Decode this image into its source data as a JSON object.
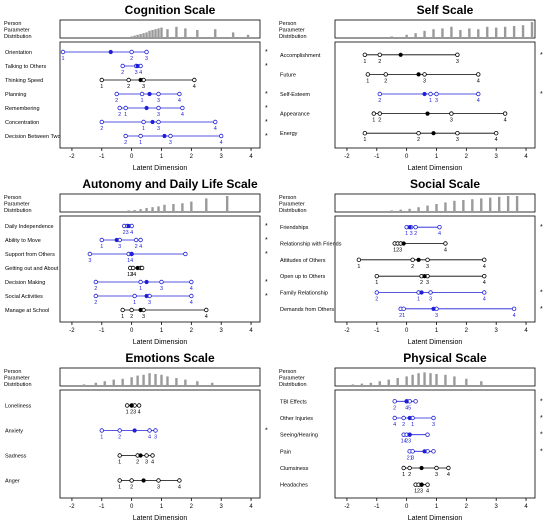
{
  "figure": {
    "distribution_label_lines": [
      "Person",
      "Parameter",
      "Distribution"
    ],
    "xlabel": "Latent Dimension",
    "xticks": [
      -2,
      -1,
      0,
      1,
      2,
      3,
      4
    ],
    "xlim": [
      -2.4,
      4.3
    ]
  },
  "chart_data": [
    {
      "type": "scatter",
      "title": "Cognition Scale",
      "xlabel": "Latent Dimension",
      "person_distribution": [
        {
          "x": 0.0,
          "h": 0.1
        },
        {
          "x": 0.1,
          "h": 0.15
        },
        {
          "x": 0.2,
          "h": 0.2
        },
        {
          "x": 0.3,
          "h": 0.25
        },
        {
          "x": 0.4,
          "h": 0.3
        },
        {
          "x": 0.5,
          "h": 0.35
        },
        {
          "x": 0.6,
          "h": 0.45
        },
        {
          "x": 0.7,
          "h": 0.5
        },
        {
          "x": 0.8,
          "h": 0.55
        },
        {
          "x": 0.9,
          "h": 0.6
        },
        {
          "x": 1.0,
          "h": 0.65
        },
        {
          "x": 1.2,
          "h": 0.55
        },
        {
          "x": 1.5,
          "h": 0.7
        },
        {
          "x": 1.8,
          "h": 0.6
        },
        {
          "x": 2.2,
          "h": 0.5
        },
        {
          "x": 2.8,
          "h": 0.55
        },
        {
          "x": 3.4,
          "h": 0.35
        },
        {
          "x": 3.9,
          "h": 0.2
        }
      ],
      "items": [
        {
          "name": "Orientation",
          "misfit": true,
          "color": "#1f1fd6",
          "mean": -0.7,
          "thresholds": [
            -2.3,
            0.0,
            0.5
          ],
          "labels": [
            "1",
            "2",
            "3"
          ]
        },
        {
          "name": "Talking to Others",
          "misfit": true,
          "color": "#1f1fd6",
          "mean": 0.2,
          "thresholds": [
            -0.3,
            0.15,
            0.3
          ],
          "labels": [
            "2",
            "3",
            "4"
          ]
        },
        {
          "name": "Thinking Speed",
          "misfit": false,
          "color": "#000000",
          "mean": 0.3,
          "thresholds": [
            -1.0,
            -0.1,
            0.4,
            2.1
          ],
          "labels": [
            "1",
            "2",
            "3",
            "4"
          ]
        },
        {
          "name": "Planning",
          "misfit": true,
          "color": "#1f1fd6",
          "mean": 0.6,
          "thresholds": [
            -0.5,
            0.35,
            0.9,
            1.6
          ],
          "labels": [
            "2",
            "1",
            "3",
            "4"
          ]
        },
        {
          "name": "Remembering",
          "misfit": true,
          "color": "#1f1fd6",
          "mean": 0.5,
          "thresholds": [
            -0.4,
            -0.2,
            0.9,
            1.7
          ],
          "labels": [
            "2",
            "1",
            "3",
            "4"
          ]
        },
        {
          "name": "Concentration",
          "misfit": true,
          "color": "#1f1fd6",
          "mean": 0.7,
          "thresholds": [
            -1.0,
            0.4,
            0.9,
            2.8
          ],
          "labels": [
            "2",
            "1",
            "3",
            "4"
          ]
        },
        {
          "name": "Decision Between Two",
          "misfit": true,
          "color": "#1f1fd6",
          "mean": 1.1,
          "thresholds": [
            -0.2,
            0.3,
            1.3,
            3.0
          ],
          "labels": [
            "2",
            "1",
            "3",
            "4"
          ]
        }
      ]
    },
    {
      "type": "scatter",
      "title": "Self Scale",
      "xlabel": "Latent Dimension",
      "person_distribution": [
        {
          "x": -0.5,
          "h": 0.1
        },
        {
          "x": 0.0,
          "h": 0.2
        },
        {
          "x": 0.3,
          "h": 0.3
        },
        {
          "x": 0.6,
          "h": 0.45
        },
        {
          "x": 0.9,
          "h": 0.55
        },
        {
          "x": 1.2,
          "h": 0.6
        },
        {
          "x": 1.5,
          "h": 0.7
        },
        {
          "x": 1.8,
          "h": 0.5
        },
        {
          "x": 2.1,
          "h": 0.6
        },
        {
          "x": 2.4,
          "h": 0.55
        },
        {
          "x": 2.7,
          "h": 0.7
        },
        {
          "x": 3.0,
          "h": 0.65
        },
        {
          "x": 3.3,
          "h": 0.7
        },
        {
          "x": 3.6,
          "h": 0.75
        },
        {
          "x": 3.9,
          "h": 0.8
        },
        {
          "x": 4.2,
          "h": 1.0
        }
      ],
      "items": [
        {
          "name": "Accomplishment",
          "misfit": true,
          "color": "#000000",
          "mean": -0.2,
          "thresholds": [
            -1.4,
            -0.9,
            1.7
          ],
          "labels": [
            "1",
            "2",
            "3"
          ]
        },
        {
          "name": "Future",
          "misfit": false,
          "color": "#000000",
          "mean": 0.4,
          "thresholds": [
            -1.3,
            -0.7,
            0.6,
            2.4
          ],
          "labels": [
            "1",
            "2",
            "3",
            "4"
          ]
        },
        {
          "name": "Self-Esteem",
          "misfit": true,
          "color": "#1f1fd6",
          "mean": 0.6,
          "thresholds": [
            -0.9,
            0.8,
            1.0,
            2.4
          ],
          "labels": [
            "2",
            "1",
            "3",
            "4"
          ]
        },
        {
          "name": "Appearance",
          "misfit": false,
          "color": "#000000",
          "mean": 0.7,
          "thresholds": [
            -1.1,
            -0.9,
            1.5,
            3.3
          ],
          "labels": [
            "1",
            "2",
            "3",
            "4"
          ]
        },
        {
          "name": "Energy",
          "misfit": false,
          "color": "#000000",
          "mean": 0.9,
          "thresholds": [
            -1.4,
            0.4,
            1.7,
            3.0
          ],
          "labels": [
            "1",
            "2",
            "3",
            "4"
          ]
        }
      ]
    },
    {
      "type": "scatter",
      "title": "Autonomy and Daily Life Scale",
      "xlabel": "Latent Dimension",
      "person_distribution": [
        {
          "x": -0.1,
          "h": 0.1
        },
        {
          "x": 0.1,
          "h": 0.12
        },
        {
          "x": 0.3,
          "h": 0.18
        },
        {
          "x": 0.5,
          "h": 0.25
        },
        {
          "x": 0.7,
          "h": 0.3
        },
        {
          "x": 0.9,
          "h": 0.35
        },
        {
          "x": 1.1,
          "h": 0.45
        },
        {
          "x": 1.4,
          "h": 0.5
        },
        {
          "x": 1.7,
          "h": 0.55
        },
        {
          "x": 2.0,
          "h": 0.65
        },
        {
          "x": 2.5,
          "h": 0.85
        },
        {
          "x": 3.2,
          "h": 1.0
        }
      ],
      "items": [
        {
          "name": "Daily Independence",
          "misfit": true,
          "color": "#1f1fd6",
          "mean": -0.1,
          "thresholds": [
            -0.25,
            -0.15,
            0.0
          ],
          "labels": [
            "2",
            "3",
            "4"
          ]
        },
        {
          "name": "Ability to Move",
          "misfit": true,
          "color": "#1f1fd6",
          "mean": -0.5,
          "thresholds": [
            -1.0,
            -0.4,
            0.15,
            0.3
          ],
          "labels": [
            "1",
            "3",
            "2",
            "4"
          ]
        },
        {
          "name": "Support from Others",
          "misfit": true,
          "color": "#1f1fd6",
          "mean": 0.0,
          "thresholds": [
            -1.4,
            -0.1,
            0.0,
            1.8
          ],
          "labels": [
            "3",
            "1",
            "4"
          ]
        },
        {
          "name": "Getting out and About",
          "misfit": false,
          "color": "#000000",
          "mean": 0.2,
          "thresholds": [
            -0.05,
            0.05,
            0.3,
            0.35
          ],
          "labels": [
            "12",
            "34"
          ]
        },
        {
          "name": "Decision Making",
          "misfit": true,
          "color": "#1f1fd6",
          "mean": 0.5,
          "thresholds": [
            -1.2,
            0.3,
            1.0,
            2.0
          ],
          "labels": [
            "2",
            "1",
            "3",
            "4"
          ]
        },
        {
          "name": "Social Activities",
          "misfit": true,
          "color": "#1f1fd6",
          "mean": 0.5,
          "thresholds": [
            -1.2,
            0.1,
            0.6,
            2.0
          ],
          "labels": [
            "2",
            "1",
            "3",
            "4"
          ]
        },
        {
          "name": "Manage at School",
          "misfit": false,
          "color": "#000000",
          "mean": 0.3,
          "thresholds": [
            -0.3,
            0.0,
            0.4,
            2.5
          ],
          "labels": [
            "1",
            "2",
            "3",
            "4"
          ]
        }
      ]
    },
    {
      "type": "scatter",
      "title": "Social Scale",
      "xlabel": "Latent Dimension",
      "person_distribution": [
        {
          "x": -0.5,
          "h": 0.1
        },
        {
          "x": -0.2,
          "h": 0.15
        },
        {
          "x": 0.1,
          "h": 0.2
        },
        {
          "x": 0.4,
          "h": 0.3
        },
        {
          "x": 0.7,
          "h": 0.4
        },
        {
          "x": 1.0,
          "h": 0.5
        },
        {
          "x": 1.3,
          "h": 0.6
        },
        {
          "x": 1.6,
          "h": 0.7
        },
        {
          "x": 1.9,
          "h": 0.75
        },
        {
          "x": 2.2,
          "h": 0.8
        },
        {
          "x": 2.5,
          "h": 0.85
        },
        {
          "x": 2.8,
          "h": 0.9
        },
        {
          "x": 3.1,
          "h": 0.95
        },
        {
          "x": 3.4,
          "h": 1.0
        },
        {
          "x": 3.7,
          "h": 1.0
        }
      ],
      "items": [
        {
          "name": "Friendships",
          "misfit": true,
          "color": "#1f1fd6",
          "mean": 0.1,
          "thresholds": [
            0.0,
            0.15,
            0.3,
            1.1
          ],
          "labels": [
            "1",
            "3",
            "2",
            "4"
          ]
        },
        {
          "name": "Relationship with Friends",
          "misfit": false,
          "color": "#000000",
          "mean": -0.1,
          "thresholds": [
            -0.4,
            -0.3,
            -0.2,
            1.3
          ],
          "labels": [
            "1",
            "2",
            "3",
            "4"
          ]
        },
        {
          "name": "Attitudes of Others",
          "misfit": false,
          "color": "#000000",
          "mean": 0.4,
          "thresholds": [
            -1.6,
            0.2,
            0.7,
            2.6
          ],
          "labels": [
            "1",
            "2",
            "3",
            "4"
          ]
        },
        {
          "name": "Open up to Others",
          "misfit": false,
          "color": "#000000",
          "mean": 0.6,
          "thresholds": [
            -1.0,
            0.5,
            0.7,
            2.6
          ],
          "labels": [
            "1",
            "2",
            "3",
            "4"
          ]
        },
        {
          "name": "Family Relationship",
          "misfit": true,
          "color": "#1f1fd6",
          "mean": 0.5,
          "thresholds": [
            -1.0,
            0.4,
            0.8,
            2.6
          ],
          "labels": [
            "2",
            "1",
            "3",
            "4"
          ]
        },
        {
          "name": "Demands from Others",
          "misfit": true,
          "color": "#1f1fd6",
          "mean": 0.9,
          "thresholds": [
            -0.2,
            -0.1,
            1.0,
            3.6
          ],
          "labels": [
            "2",
            "1",
            "3",
            "4"
          ]
        }
      ]
    },
    {
      "type": "scatter",
      "title": "Emotions Scale",
      "xlabel": "Latent Dimension",
      "person_distribution": [
        {
          "x": -1.6,
          "h": 0.1
        },
        {
          "x": -1.2,
          "h": 0.2
        },
        {
          "x": -0.9,
          "h": 0.3
        },
        {
          "x": -0.6,
          "h": 0.4
        },
        {
          "x": -0.3,
          "h": 0.45
        },
        {
          "x": 0.0,
          "h": 0.55
        },
        {
          "x": 0.2,
          "h": 0.65
        },
        {
          "x": 0.4,
          "h": 0.7
        },
        {
          "x": 0.6,
          "h": 0.8
        },
        {
          "x": 0.8,
          "h": 0.75
        },
        {
          "x": 1.0,
          "h": 0.7
        },
        {
          "x": 1.2,
          "h": 0.6
        },
        {
          "x": 1.5,
          "h": 0.5
        },
        {
          "x": 1.8,
          "h": 0.4
        },
        {
          "x": 2.2,
          "h": 0.3
        },
        {
          "x": 2.7,
          "h": 0.2
        }
      ],
      "items": [
        {
          "name": "Loneliness",
          "misfit": false,
          "color": "#000000",
          "mean": 0.0,
          "thresholds": [
            -0.15,
            0.0,
            0.1,
            0.25
          ],
          "labels": [
            "1",
            "2",
            "3",
            "4"
          ]
        },
        {
          "name": "Anxiety",
          "misfit": true,
          "color": "#1f1fd6",
          "mean": 0.1,
          "thresholds": [
            -1.0,
            -0.4,
            0.6,
            0.8
          ],
          "labels": [
            "1",
            "2",
            "4",
            "3"
          ]
        },
        {
          "name": "Sadness",
          "misfit": false,
          "color": "#000000",
          "mean": 0.3,
          "thresholds": [
            -0.4,
            0.2,
            0.5,
            0.7
          ],
          "labels": [
            "1",
            "2",
            "3",
            "4"
          ]
        },
        {
          "name": "Anger",
          "misfit": false,
          "color": "#000000",
          "mean": 0.4,
          "thresholds": [
            -0.4,
            0.0,
            0.9,
            1.6
          ],
          "labels": [
            "1",
            "2",
            "3",
            "4"
          ]
        }
      ]
    },
    {
      "type": "scatter",
      "title": "Physical Scale",
      "xlabel": "Latent Dimension",
      "person_distribution": [
        {
          "x": -1.8,
          "h": 0.1
        },
        {
          "x": -1.5,
          "h": 0.15
        },
        {
          "x": -1.2,
          "h": 0.2
        },
        {
          "x": -0.9,
          "h": 0.3
        },
        {
          "x": -0.6,
          "h": 0.4
        },
        {
          "x": -0.3,
          "h": 0.5
        },
        {
          "x": 0.0,
          "h": 0.6
        },
        {
          "x": 0.2,
          "h": 0.7
        },
        {
          "x": 0.4,
          "h": 0.8
        },
        {
          "x": 0.6,
          "h": 0.85
        },
        {
          "x": 0.8,
          "h": 0.8
        },
        {
          "x": 1.0,
          "h": 0.75
        },
        {
          "x": 1.3,
          "h": 0.7
        },
        {
          "x": 1.6,
          "h": 0.6
        },
        {
          "x": 2.0,
          "h": 0.45
        },
        {
          "x": 2.5,
          "h": 0.3
        }
      ],
      "items": [
        {
          "name": "TBI Effects",
          "misfit": true,
          "color": "#1f1fd6",
          "mean": 0.0,
          "thresholds": [
            -0.4,
            0.0,
            0.1,
            0.3
          ],
          "labels": [
            "2",
            "4",
            "5"
          ]
        },
        {
          "name": "Other Injuries",
          "misfit": true,
          "color": "#1f1fd6",
          "mean": 0.1,
          "thresholds": [
            -0.4,
            -0.1,
            0.2,
            0.9
          ],
          "labels": [
            "4",
            "2",
            "1",
            "3"
          ]
        },
        {
          "name": "Seeing/Hearing",
          "misfit": true,
          "color": "#1f1fd6",
          "mean": 0.1,
          "thresholds": [
            -0.1,
            0.0,
            0.1,
            0.7
          ],
          "labels": [
            "14",
            "2",
            "3"
          ]
        },
        {
          "name": "Pain",
          "misfit": true,
          "color": "#1f1fd6",
          "mean": 0.6,
          "thresholds": [
            0.1,
            0.2,
            0.7,
            0.9
          ],
          "labels": [
            "21",
            "3"
          ]
        },
        {
          "name": "Clumsiness",
          "misfit": false,
          "color": "#000000",
          "mean": 0.5,
          "thresholds": [
            -0.1,
            0.1,
            1.0,
            1.4
          ],
          "labels": [
            "1",
            "2",
            "3",
            "4"
          ]
        },
        {
          "name": "Headaches",
          "misfit": false,
          "color": "#000000",
          "mean": 0.5,
          "thresholds": [
            0.3,
            0.4,
            0.5,
            0.7
          ],
          "labels": [
            "1",
            "2",
            "3",
            "4"
          ]
        }
      ]
    }
  ]
}
